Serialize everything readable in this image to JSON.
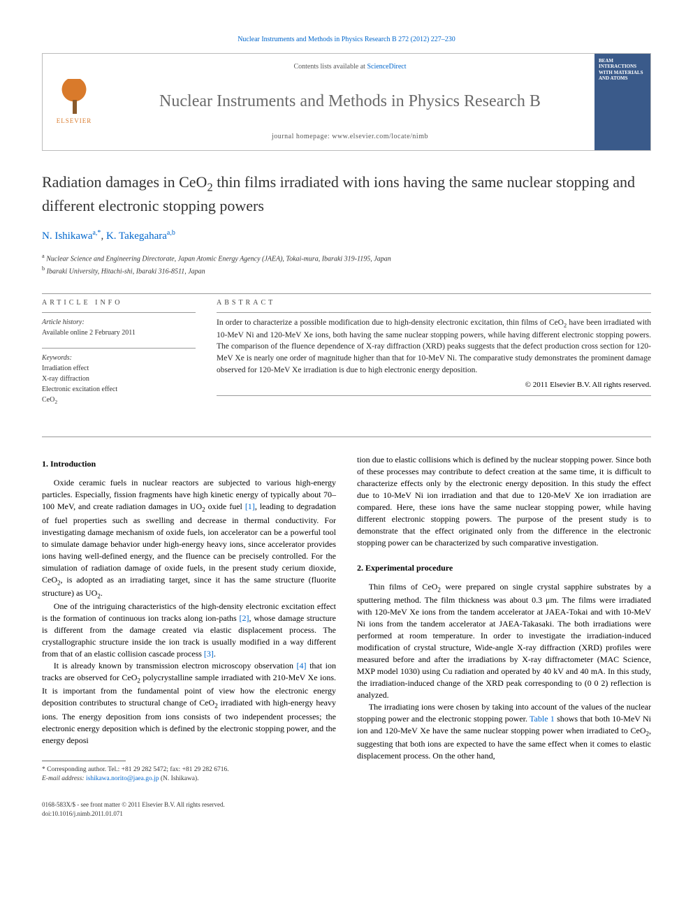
{
  "citation": "Nuclear Instruments and Methods in Physics Research B 272 (2012) 227–230",
  "header": {
    "contents_prefix": "Contents lists available at ",
    "contents_link": "ScienceDirect",
    "journal_name": "Nuclear Instruments and Methods in Physics Research B",
    "homepage_prefix": "journal homepage: ",
    "homepage_url": "www.elsevier.com/locate/nimb",
    "publisher": "ELSEVIER",
    "cover_text": "BEAM INTERACTIONS WITH MATERIALS AND ATOMS"
  },
  "title": "Radiation damages in CeO₂ thin films irradiated with ions having the same nuclear stopping and different electronic stopping powers",
  "authors_html": "N. Ishikawa",
  "author1_sup": "a,*",
  "author_sep": ", ",
  "author2": "K. Takegahara",
  "author2_sup": "a,b",
  "affiliations": {
    "a": "Nuclear Science and Engineering Directorate, Japan Atomic Energy Agency (JAEA), Tokai-mura, Ibaraki 319-1195, Japan",
    "b": "Ibaraki University, Hitachi-shi, Ibaraki 316-8511, Japan"
  },
  "article_info": {
    "heading": "ARTICLE INFO",
    "history_label": "Article history:",
    "history_text": "Available online 2 February 2011",
    "keywords_label": "Keywords:",
    "keywords": [
      "Irradiation effect",
      "X-ray diffraction",
      "Electronic excitation effect",
      "CeO₂"
    ]
  },
  "abstract": {
    "heading": "ABSTRACT",
    "text": "In order to characterize a possible modification due to high-density electronic excitation, thin films of CeO₂ have been irradiated with 10-MeV Ni and 120-MeV Xe ions, both having the same nuclear stopping powers, while having different electronic stopping powers. The comparison of the fluence dependence of X-ray diffraction (XRD) peaks suggests that the defect production cross section for 120-MeV Xe is nearly one order of magnitude higher than that for 10-MeV Ni. The comparative study demonstrates the prominent damage observed for 120-MeV Xe irradiation is due to high electronic energy deposition.",
    "copyright": "© 2011 Elsevier B.V. All rights reserved."
  },
  "sections": {
    "s1_heading": "1. Introduction",
    "s1_p1": "Oxide ceramic fuels in nuclear reactors are subjected to various high-energy particles. Especially, fission fragments have high kinetic energy of typically about 70–100 MeV, and create radiation damages in UO₂ oxide fuel [1], leading to degradation of fuel properties such as swelling and decrease in thermal conductivity. For investigating damage mechanism of oxide fuels, ion accelerator can be a powerful tool to simulate damage behavior under high-energy heavy ions, since accelerator provides ions having well-defined energy, and the fluence can be precisely controlled. For the simulation of radiation damage of oxide fuels, in the present study cerium dioxide, CeO₂, is adopted as an irradiating target, since it has the same structure (fluorite structure) as UO₂.",
    "s1_p2": "One of the intriguing characteristics of the high-density electronic excitation effect is the formation of continuous ion tracks along ion-paths [2], whose damage structure is different from the damage created via elastic displacement process. The crystallographic structure inside the ion track is usually modified in a way different from that of an elastic collision cascade process [3].",
    "s1_p3": "It is already known by transmission electron microscopy observation [4] that ion tracks are observed for CeO₂ polycrystalline sample irradiated with 210-MeV Xe ions. It is important from the fundamental point of view how the electronic energy deposition contributes to structural change of CeO₂ irradiated with high-energy heavy ions. The energy deposition from ions consists of two independent processes; the electronic energy deposition which is defined by the electronic stopping power, and the energy deposi",
    "s1_p3_cont": "tion due to elastic collisions which is defined by the nuclear stopping power. Since both of these processes may contribute to defect creation at the same time, it is difficult to characterize effects only by the electronic energy deposition. In this study the effect due to 10-MeV Ni ion irradiation and that due to 120-MeV Xe ion irradiation are compared. Here, these ions have the same nuclear stopping power, while having different electronic stopping powers. The purpose of the present study is to demonstrate that the effect originated only from the difference in the electronic stopping power can be characterized by such comparative investigation.",
    "s2_heading": "2. Experimental procedure",
    "s2_p1": "Thin films of CeO₂ were prepared on single crystal sapphire substrates by a sputtering method. The film thickness was about 0.3 μm. The films were irradiated with 120-MeV Xe ions from the tandem accelerator at JAEA-Tokai and with 10-MeV Ni ions from the tandem accelerator at JAEA-Takasaki. The both irradiations were performed at room temperature. In order to investigate the irradiation-induced modification of crystal structure, Wide-angle X-ray diffraction (XRD) profiles were measured before and after the irradiations by X-ray diffractometer (MAC Science, MXP model 1030) using Cu radiation and operated by 40 kV and 40 mA. In this study, the irradiation-induced change of the XRD peak corresponding to (0 0 2) reflection is analyzed.",
    "s2_p2": "The irradiating ions were chosen by taking into account of the values of the nuclear stopping power and the electronic stopping power. Table 1 shows that both 10-MeV Ni ion and 120-MeV Xe have the same nuclear stopping power when irradiated to CeO₂, suggesting that both ions are expected to have the same effect when it comes to elastic displacement process. On the other hand,"
  },
  "footnote": {
    "corr": "* Corresponding author. Tel.: +81 29 282 5472; fax: +81 29 282 6716.",
    "email_label": "E-mail address:",
    "email": "ishikawa.norito@jaea.go.jp",
    "email_author": "(N. Ishikawa)."
  },
  "bottom": {
    "issn": "0168-583X/$ - see front matter © 2011 Elsevier B.V. All rights reserved.",
    "doi": "doi:10.1016/j.nimb.2011.01.071"
  },
  "colors": {
    "link": "#0066cc",
    "text": "#222222",
    "heading_gray": "#6a6a6a",
    "orange": "#d97a2b"
  }
}
